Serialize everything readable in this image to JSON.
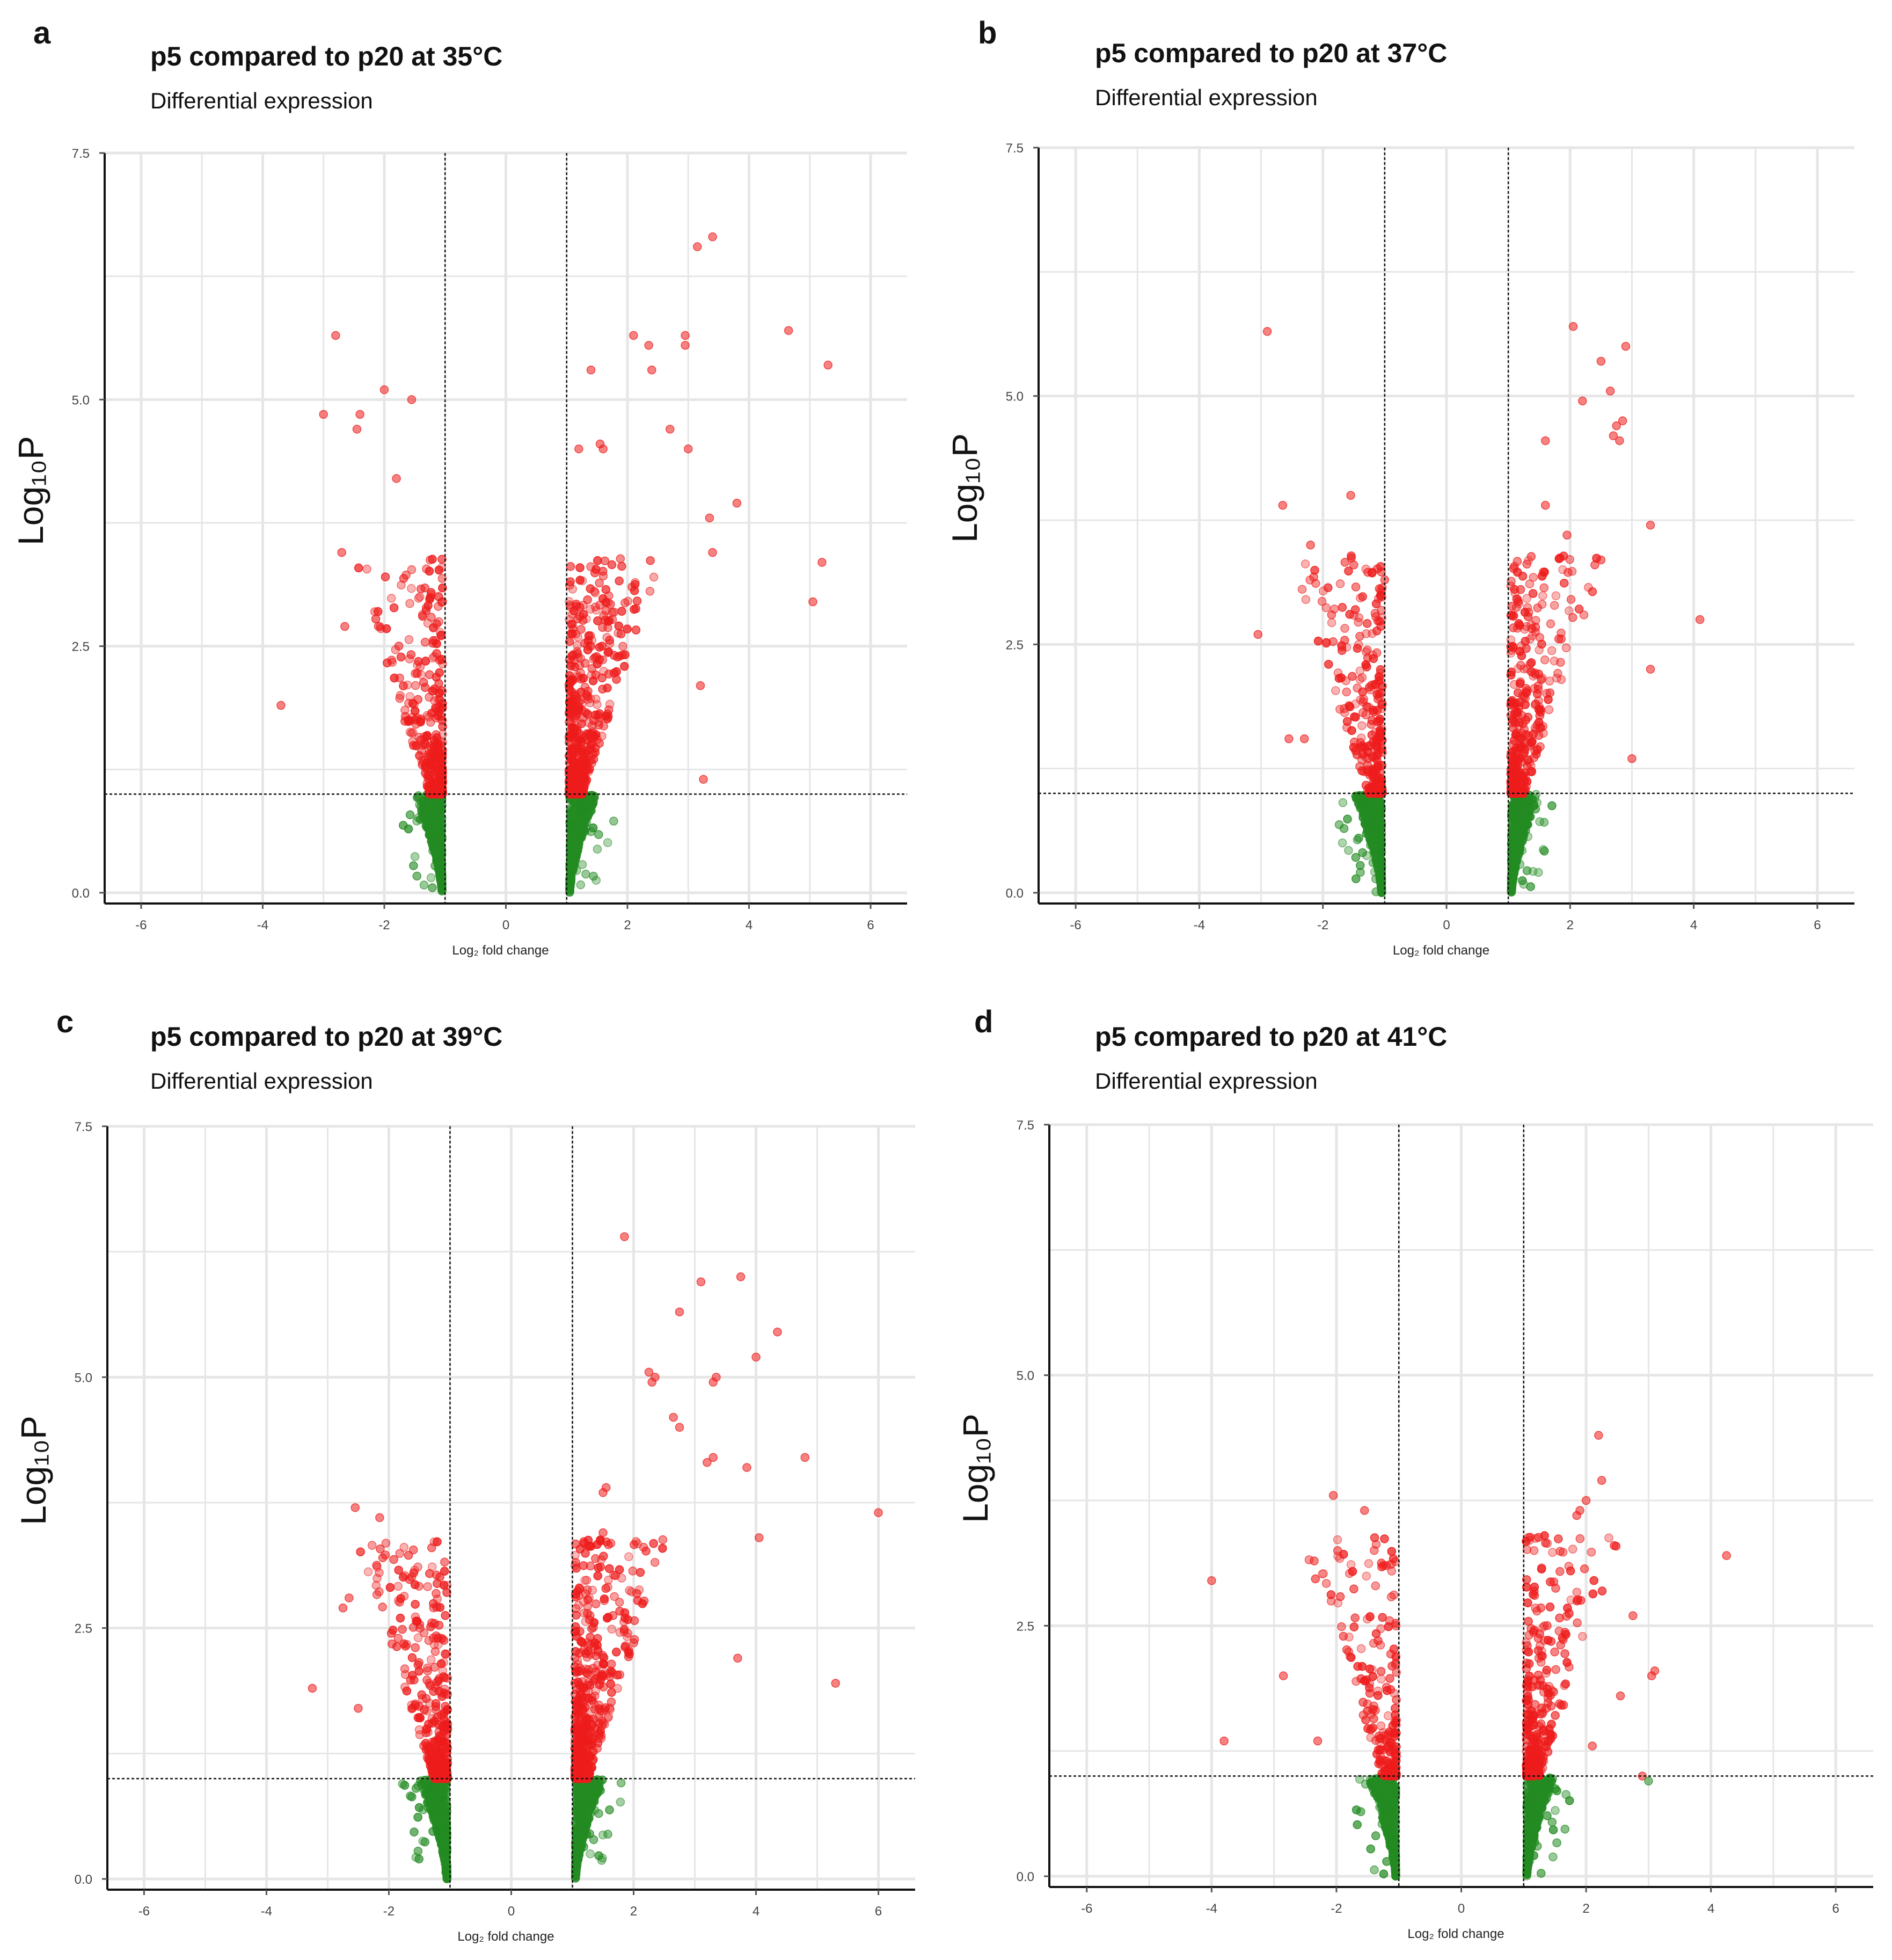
{
  "colors": {
    "significant": "#ee1c1c",
    "not_significant": "#238b22",
    "grid": "#e6e6e6"
  },
  "chart_data": [
    {
      "panel": "a",
      "type": "scatter",
      "title": "p5 compared to p20 at 35°C",
      "subtitle": "Differential expression",
      "xlabel": "Log₂ fold change",
      "ylabel": "Log₁₀P",
      "xlim": [
        -6.6,
        6.6
      ],
      "ylim": [
        0,
        7.5
      ],
      "xticks": [
        "-6",
        "-4",
        "-2",
        "0",
        "2",
        "4",
        "6"
      ],
      "yticks": [
        "0.0",
        "2.5",
        "5.0",
        "7.5"
      ],
      "fc_cutoff": 1,
      "p_cutoff": 1,
      "seed": 11,
      "n_green": 900,
      "n_red": 900,
      "outliers": [
        [
          -3.7,
          1.9
        ],
        [
          -2.8,
          5.65
        ],
        [
          -2.7,
          3.45
        ],
        [
          -2.65,
          2.7
        ],
        [
          -3.0,
          4.85
        ],
        [
          -2.45,
          4.7
        ],
        [
          -2.4,
          4.85
        ],
        [
          -2.0,
          5.1
        ],
        [
          -1.55,
          5.0
        ],
        [
          -1.8,
          4.2
        ],
        [
          2.1,
          5.65
        ],
        [
          2.35,
          5.55
        ],
        [
          2.4,
          5.3
        ],
        [
          2.95,
          5.65
        ],
        [
          2.95,
          5.55
        ],
        [
          3.15,
          6.55
        ],
        [
          3.4,
          6.65
        ],
        [
          4.65,
          5.7
        ],
        [
          5.3,
          5.35
        ],
        [
          5.05,
          2.95
        ],
        [
          5.2,
          3.35
        ],
        [
          3.25,
          1.15
        ],
        [
          3.2,
          2.1
        ],
        [
          1.6,
          4.5
        ],
        [
          1.55,
          4.55
        ],
        [
          1.2,
          4.5
        ],
        [
          1.4,
          5.3
        ],
        [
          2.7,
          4.7
        ],
        [
          3.0,
          4.5
        ],
        [
          3.35,
          3.8
        ],
        [
          3.4,
          3.45
        ],
        [
          3.8,
          3.95
        ]
      ]
    },
    {
      "panel": "b",
      "type": "scatter",
      "title": "p5 compared to p20 at 37°C",
      "subtitle": "Differential expression",
      "xlabel": "Log₂ fold change",
      "ylabel": "Log₁₀P",
      "xlim": [
        -6.6,
        6.6
      ],
      "ylim": [
        0,
        7.5
      ],
      "xticks": [
        "-6",
        "-4",
        "-2",
        "0",
        "2",
        "4",
        "6"
      ],
      "yticks": [
        "0.0",
        "2.5",
        "5.0",
        "7.5"
      ],
      "fc_cutoff": 1,
      "p_cutoff": 1,
      "seed": 22,
      "n_green": 900,
      "n_red": 650,
      "outliers": [
        [
          -2.9,
          5.65
        ],
        [
          -2.65,
          3.9
        ],
        [
          -3.05,
          2.6
        ],
        [
          -2.2,
          3.5
        ],
        [
          -1.55,
          4.0
        ],
        [
          -1.5,
          3.3
        ],
        [
          -1.0,
          3.15
        ],
        [
          -2.55,
          1.55
        ],
        [
          -2.3,
          1.55
        ],
        [
          2.05,
          5.7
        ],
        [
          2.9,
          5.5
        ],
        [
          2.5,
          5.35
        ],
        [
          2.75,
          4.7
        ],
        [
          2.8,
          4.55
        ],
        [
          2.85,
          4.75
        ],
        [
          2.7,
          4.6
        ],
        [
          3.3,
          3.7
        ],
        [
          4.1,
          2.75
        ],
        [
          3.3,
          2.25
        ],
        [
          3.0,
          1.35
        ],
        [
          2.4,
          3.3
        ],
        [
          2.5,
          3.35
        ],
        [
          1.6,
          4.55
        ],
        [
          1.6,
          3.9
        ],
        [
          2.2,
          4.95
        ],
        [
          2.65,
          5.05
        ],
        [
          1.95,
          3.6
        ]
      ]
    },
    {
      "panel": "c",
      "type": "scatter",
      "title": "p5 compared to p20 at 39°C",
      "subtitle": "Differential expression",
      "xlabel": "Log₂ fold change",
      "ylabel": "Log₁₀P",
      "xlim": [
        -6.6,
        6.6
      ],
      "ylim": [
        0,
        7.5
      ],
      "xticks": [
        "-6",
        "-4",
        "-2",
        "0",
        "2",
        "4",
        "6"
      ],
      "yticks": [
        "0.0",
        "2.5",
        "5.0",
        "7.5"
      ],
      "fc_cutoff": 1,
      "p_cutoff": 1,
      "seed": 33,
      "n_green": 900,
      "n_red": 950,
      "outliers": [
        [
          -3.25,
          1.9
        ],
        [
          -2.55,
          3.7
        ],
        [
          -2.5,
          1.7
        ],
        [
          -2.15,
          3.6
        ],
        [
          -2.75,
          2.7
        ],
        [
          -2.65,
          2.8
        ],
        [
          -2.1,
          3.2
        ],
        [
          -1.3,
          3.3
        ],
        [
          1.85,
          6.4
        ],
        [
          3.1,
          5.95
        ],
        [
          3.75,
          6.0
        ],
        [
          4.35,
          5.45
        ],
        [
          2.75,
          5.65
        ],
        [
          3.3,
          4.95
        ],
        [
          3.35,
          5.0
        ],
        [
          2.25,
          5.05
        ],
        [
          2.3,
          4.95
        ],
        [
          2.35,
          5.0
        ],
        [
          2.65,
          4.6
        ],
        [
          2.75,
          4.5
        ],
        [
          3.2,
          4.15
        ],
        [
          3.3,
          4.2
        ],
        [
          4.8,
          4.2
        ],
        [
          6.0,
          3.65
        ],
        [
          5.3,
          1.95
        ],
        [
          4.05,
          3.4
        ],
        [
          3.7,
          2.2
        ],
        [
          3.85,
          4.1
        ],
        [
          4.0,
          5.2
        ],
        [
          1.5,
          3.85
        ],
        [
          1.55,
          3.9
        ],
        [
          1.5,
          3.45
        ]
      ]
    },
    {
      "panel": "d",
      "type": "scatter",
      "title": "p5 compared to p20 at 41°C",
      "subtitle": "Differential expression",
      "xlabel": "Log₂ fold change",
      "ylabel": "Log₁₀P",
      "xlim": [
        -6.6,
        6.6
      ],
      "ylim": [
        0,
        7.5
      ],
      "xticks": [
        "-6",
        "-4",
        "-2",
        "0",
        "2",
        "4",
        "6"
      ],
      "yticks": [
        "0.0",
        "2.5",
        "5.0",
        "7.5"
      ],
      "fc_cutoff": 1,
      "p_cutoff": 1,
      "seed": 44,
      "n_green": 900,
      "n_red": 520,
      "outliers": [
        [
          -4.0,
          2.95
        ],
        [
          -3.8,
          1.35
        ],
        [
          -2.85,
          2.0
        ],
        [
          -2.05,
          3.8
        ],
        [
          -1.55,
          3.65
        ],
        [
          -1.25,
          3.1
        ],
        [
          -1.2,
          3.1
        ],
        [
          -2.3,
          1.35
        ],
        [
          2.0,
          3.75
        ],
        [
          1.85,
          3.6
        ],
        [
          1.9,
          3.65
        ],
        [
          2.2,
          4.4
        ],
        [
          2.25,
          3.95
        ],
        [
          4.25,
          3.2
        ],
        [
          3.05,
          2.0
        ],
        [
          3.1,
          2.05
        ],
        [
          2.9,
          1.0
        ],
        [
          3.0,
          0.95
        ],
        [
          2.75,
          2.6
        ],
        [
          2.45,
          3.3
        ],
        [
          2.1,
          1.3
        ],
        [
          2.55,
          1.8
        ]
      ]
    }
  ]
}
